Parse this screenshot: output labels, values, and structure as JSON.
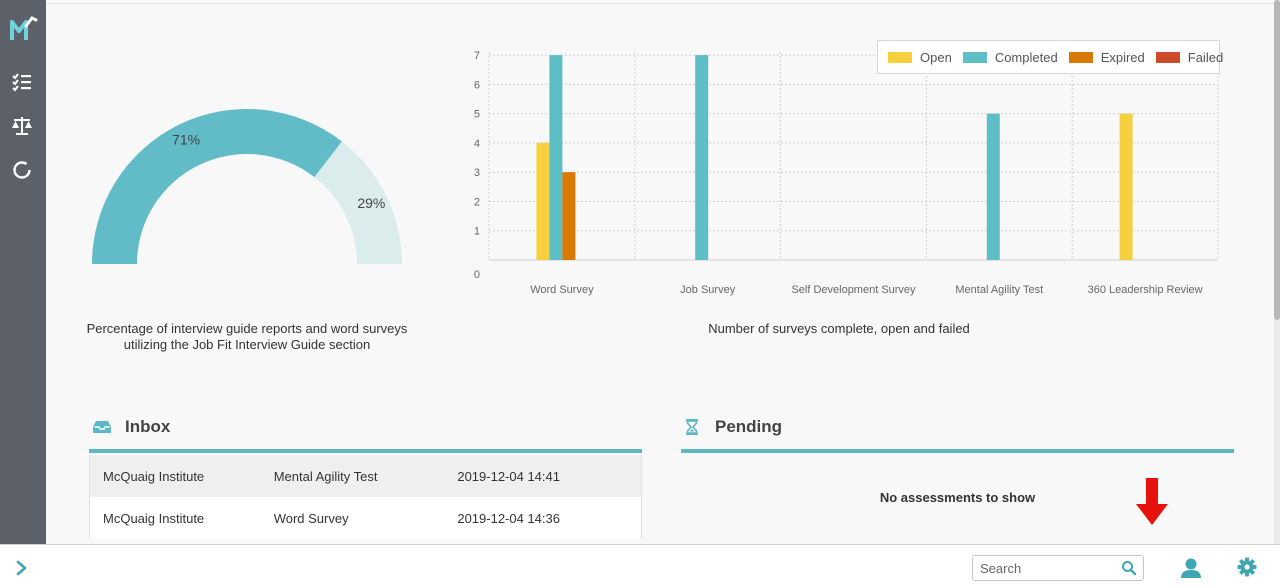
{
  "sidebar": {
    "logo": "mcquaig-logo",
    "items": [
      {
        "icon": "checklist-icon"
      },
      {
        "icon": "scales-icon"
      },
      {
        "icon": "circle-icon"
      }
    ]
  },
  "gauge": {
    "values": [
      71,
      29
    ],
    "labels": [
      "71%",
      "29%"
    ],
    "colors": [
      "#62bcc8",
      "#dbeced"
    ],
    "caption_line1": "Percentage of interview guide reports and word surveys",
    "caption_line2": "utilizing the Job Fit Interview Guide section"
  },
  "chart_data": {
    "type": "bar",
    "categories": [
      "Word Survey",
      "Job Survey",
      "Self Development Survey",
      "Mental Agility Test",
      "360 Leadership Review"
    ],
    "series": [
      {
        "name": "Open",
        "color": "#f6cf3f",
        "values": [
          4,
          0,
          0,
          0,
          5
        ]
      },
      {
        "name": "Completed",
        "color": "#5ebec6",
        "values": [
          7,
          7,
          0,
          5,
          0
        ]
      },
      {
        "name": "Expired",
        "color": "#d97a07",
        "values": [
          3,
          0,
          0,
          0,
          0
        ]
      },
      {
        "name": "Failed",
        "color": "#cc4b2a",
        "values": [
          0,
          0,
          0,
          0,
          0
        ]
      }
    ],
    "yticks": [
      "0",
      "1",
      "2",
      "3",
      "4",
      "5",
      "6",
      "7"
    ],
    "ylim": [
      0,
      7
    ],
    "grid": true,
    "legend_position": "top-right",
    "caption": "Number of surveys complete, open and failed"
  },
  "inbox": {
    "title": "Inbox",
    "icon": "inbox-icon",
    "rows": [
      {
        "sender": "McQuaig Institute",
        "assessment": "Mental Agility Test",
        "date": "2019-12-04 14:41"
      },
      {
        "sender": "McQuaig Institute",
        "assessment": "Word Survey",
        "date": "2019-12-04 14:36"
      }
    ]
  },
  "pending": {
    "title": "Pending",
    "icon": "hourglass-icon",
    "empty_text": "No assessments to show"
  },
  "bottombar": {
    "search_placeholder": "Search",
    "accent": "#3fa7b3"
  },
  "annotation": {
    "color": "#e8120c"
  }
}
